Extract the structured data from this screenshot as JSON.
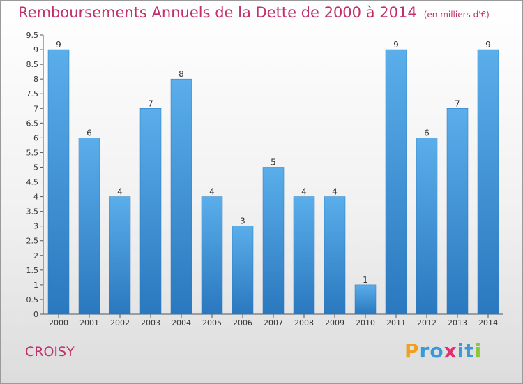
{
  "title": {
    "main": "Remboursements Annuels de la Dette de 2000 à 2014",
    "unit": "(en milliers d'€)"
  },
  "commune": "CROISY",
  "logo": {
    "text": "Proxiti",
    "letters": [
      {
        "ch": "P",
        "color": "#f0a020"
      },
      {
        "ch": "r",
        "color": "#3a9ad9"
      },
      {
        "ch": "o",
        "color": "#3a9ad9"
      },
      {
        "ch": "x",
        "color": "#e03070"
      },
      {
        "ch": "i",
        "color": "#3a9ad9"
      },
      {
        "ch": "t",
        "color": "#3a9ad9"
      },
      {
        "ch": "i",
        "color": "#8cc63e"
      }
    ]
  },
  "chart_data": {
    "type": "bar",
    "categories": [
      "2000",
      "2001",
      "2002",
      "2003",
      "2004",
      "2005",
      "2006",
      "2007",
      "2008",
      "2009",
      "2010",
      "2011",
      "2012",
      "2013",
      "2014"
    ],
    "values": [
      9,
      6,
      4,
      7,
      8,
      4,
      3,
      5,
      4,
      4,
      1,
      9,
      6,
      7,
      9
    ],
    "data_labels": [
      "9",
      "6",
      "4",
      "7",
      "8",
      "4",
      "3",
      "5",
      "4",
      "4",
      "1",
      "9",
      "6",
      "7",
      "9"
    ],
    "yticks": [
      "0",
      "0.5",
      "1",
      "1.5",
      "2",
      "2.5",
      "3",
      "3.5",
      "4",
      "4.5",
      "5",
      "5.5",
      "6",
      "6.5",
      "7",
      "7.5",
      "8",
      "8.5",
      "9",
      "9.5"
    ],
    "ylim": [
      0,
      9.5
    ],
    "grid": false,
    "bar_color": "#3a8fd6",
    "bar_color_light": "#5aaeea",
    "bar_color_dark": "#2a78bf"
  }
}
